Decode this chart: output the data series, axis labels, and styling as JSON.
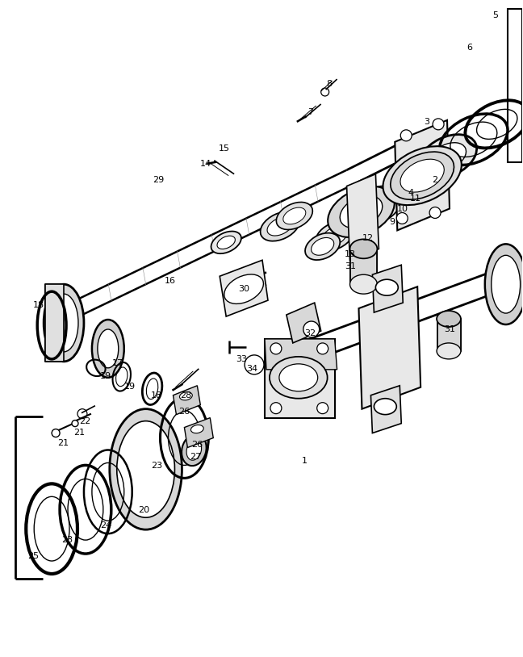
{
  "bg_color": "#ffffff",
  "fig_width": 6.48,
  "fig_height": 8.14,
  "dpi": 100,
  "labels": [
    [
      "1",
      378,
      572
    ],
    [
      "2",
      540,
      222
    ],
    [
      "3",
      530,
      150
    ],
    [
      "4",
      510,
      238
    ],
    [
      "5",
      615,
      18
    ],
    [
      "6",
      583,
      58
    ],
    [
      "7",
      385,
      138
    ],
    [
      "8",
      408,
      103
    ],
    [
      "9",
      487,
      275
    ],
    [
      "10",
      500,
      258
    ],
    [
      "11",
      516,
      245
    ],
    [
      "12",
      456,
      295
    ],
    [
      "13",
      434,
      315
    ],
    [
      "14",
      255,
      202
    ],
    [
      "15",
      278,
      183
    ],
    [
      "16",
      210,
      348
    ],
    [
      "17",
      145,
      450
    ],
    [
      "18",
      47,
      378
    ],
    [
      "18",
      193,
      490
    ],
    [
      "19",
      130,
      466
    ],
    [
      "19",
      160,
      479
    ],
    [
      "20",
      178,
      633
    ],
    [
      "21",
      77,
      549
    ],
    [
      "21",
      97,
      536
    ],
    [
      "22",
      104,
      522
    ],
    [
      "23",
      82,
      670
    ],
    [
      "23",
      194,
      578
    ],
    [
      "24",
      130,
      652
    ],
    [
      "25",
      40,
      690
    ],
    [
      "26",
      228,
      510
    ],
    [
      "26",
      244,
      551
    ],
    [
      "27",
      242,
      567
    ],
    [
      "28",
      230,
      490
    ],
    [
      "29",
      196,
      222
    ],
    [
      "30",
      302,
      358
    ],
    [
      "31",
      435,
      330
    ],
    [
      "31",
      558,
      408
    ],
    [
      "32",
      385,
      413
    ],
    [
      "33",
      299,
      445
    ],
    [
      "34",
      312,
      457
    ]
  ]
}
